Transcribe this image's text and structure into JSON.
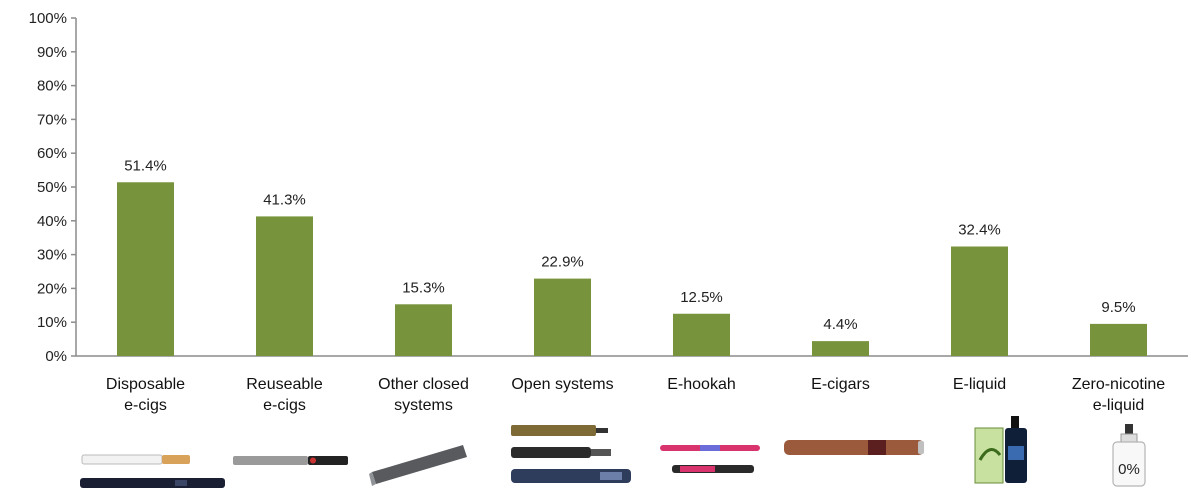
{
  "chart_data": {
    "type": "bar",
    "title": "",
    "xlabel": "",
    "ylabel": "",
    "ylim": [
      0,
      100
    ],
    "yticks": [
      "0%",
      "10%",
      "20%",
      "30%",
      "40%",
      "50%",
      "60%",
      "70%",
      "80%",
      "90%",
      "100%"
    ],
    "categories": [
      [
        "Disposable",
        "e-cigs"
      ],
      [
        "Reuseable",
        "e-cigs"
      ],
      [
        "Other closed",
        "systems"
      ],
      [
        "Open systems"
      ],
      [
        "E-hookah"
      ],
      [
        "E-cigars"
      ],
      [
        "E-liquid"
      ],
      [
        "Zero-nicotine",
        "e-liquid"
      ]
    ],
    "values": [
      51.4,
      41.3,
      15.3,
      22.9,
      12.5,
      4.4,
      32.4,
      9.5
    ],
    "data_labels": [
      "51.4%",
      "41.3%",
      "15.3%",
      "22.9%",
      "12.5%",
      "4.4%",
      "32.4%",
      "9.5%"
    ],
    "bar_color": "#77933c",
    "grid": false,
    "legend": "none",
    "product_images": [
      "disposable-ecig-icon",
      "reusable-ecig-icon",
      "pod-device-icon",
      "open-system-icon",
      "e-hookah-icon",
      "e-cigar-icon",
      "e-liquid-bottle-icon",
      "zero-nicotine-bottle-icon"
    ],
    "image_annotation": "0%"
  }
}
